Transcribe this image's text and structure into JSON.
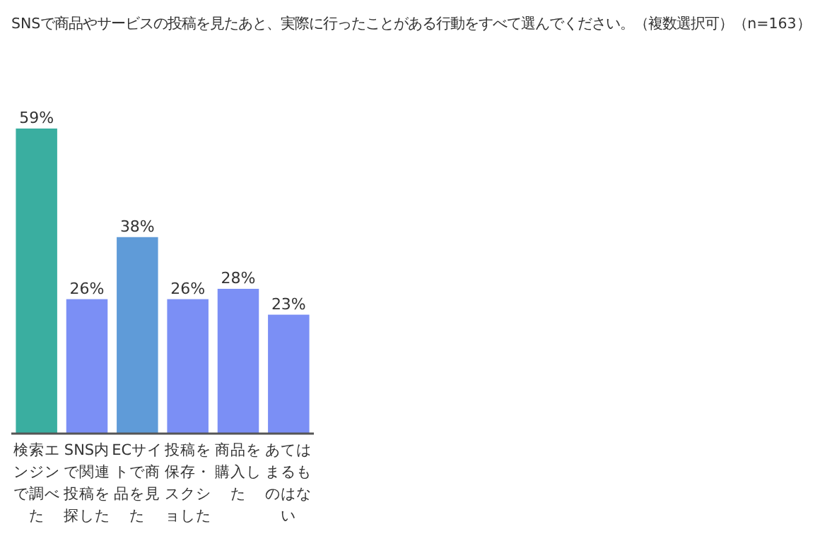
{
  "chart_data": {
    "type": "bar",
    "title": "SNSで商品やサービスの投稿を見たあと、実際に行ったことがある行動をすべて選んでください。（複数選択可）（n=163）",
    "categories": [
      "検索エンジンで調べた",
      "SNS内で関連投稿を探した",
      "ECサイトで商品を見た",
      "投稿を保存・スクショした",
      "商品を購入した",
      "あてはまるものはない"
    ],
    "values": [
      59,
      26,
      38,
      26,
      28,
      23
    ],
    "colors": [
      "#3aaea0",
      "#7b8ff5",
      "#5f9bd8",
      "#7b8ff5",
      "#7b8ff5",
      "#7b8ff5"
    ],
    "value_labels": [
      "59%",
      "26%",
      "38%",
      "26%",
      "28%",
      "23%"
    ]
  }
}
